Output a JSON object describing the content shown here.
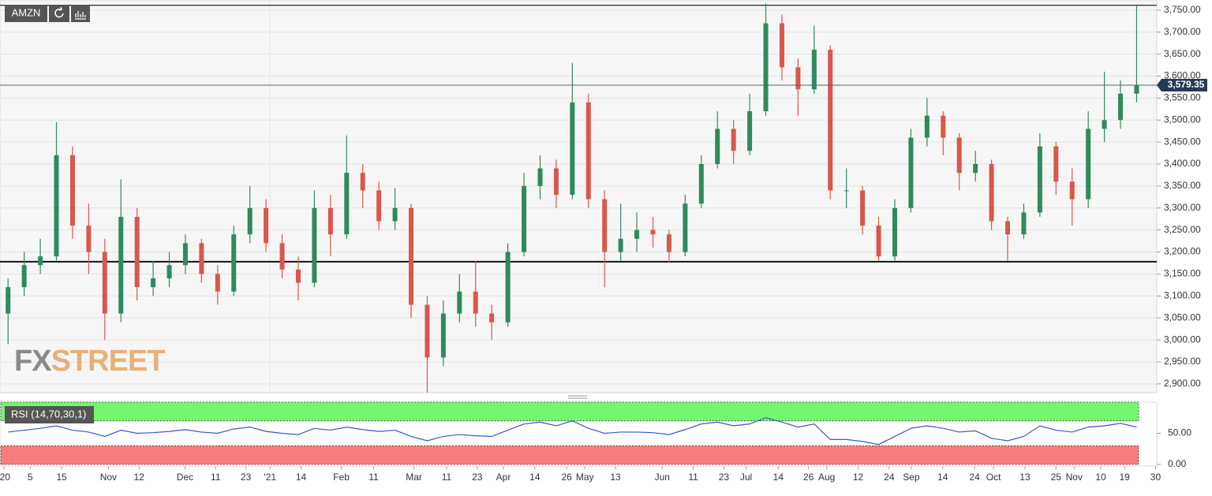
{
  "symbol": "AMZN",
  "logo": [
    "FX",
    "STREET"
  ],
  "chart_data": [
    {
      "type": "candlestick",
      "x": [
        2,
        6,
        10,
        14,
        18,
        22,
        26,
        30,
        34,
        38,
        42,
        46,
        50,
        54,
        58,
        62,
        66,
        70,
        74,
        78,
        82,
        86,
        90,
        94,
        98,
        102,
        106,
        110,
        114,
        118,
        122,
        126,
        130,
        134,
        138,
        142,
        146,
        150,
        154,
        158,
        162,
        166,
        170,
        174,
        178,
        182,
        186,
        190,
        194,
        198,
        202,
        206,
        210,
        214,
        218,
        222,
        226,
        230,
        234,
        238,
        242,
        246,
        250,
        254,
        258,
        262,
        266,
        270,
        274,
        278,
        282
      ],
      "open": [
        3060,
        3120,
        3170,
        3190,
        3420,
        3260,
        3200,
        3060,
        3280,
        3120,
        3140,
        3170,
        3220,
        3150,
        3110,
        3240,
        3300,
        3220,
        3160,
        3130,
        3300,
        3240,
        3380,
        3340,
        3270,
        3300,
        3080,
        2960,
        3060,
        3110,
        3060,
        3040,
        3200,
        3350,
        3390,
        3330,
        3540,
        3320,
        3200,
        3230,
        3250,
        3240,
        3200,
        3310,
        3400,
        3480,
        3430,
        3520,
        3720,
        3620,
        3570,
        3660,
        3340,
        3340,
        3260,
        3190,
        3300,
        3460,
        3510,
        3460,
        3380,
        3400,
        3270,
        3240,
        3290,
        3440,
        3360,
        3320,
        3480,
        3500,
        3560
      ],
      "high": [
        3140,
        3200,
        3230,
        3495,
        3440,
        3310,
        3230,
        3365,
        3300,
        3180,
        3200,
        3240,
        3230,
        3170,
        3260,
        3350,
        3320,
        3240,
        3190,
        3340,
        3330,
        3465,
        3400,
        3360,
        3345,
        3310,
        3100,
        3090,
        3150,
        3180,
        3080,
        3220,
        3380,
        3420,
        3410,
        3630,
        3560,
        3340,
        3310,
        3290,
        3280,
        3250,
        3330,
        3420,
        3520,
        3500,
        3560,
        3765,
        3740,
        3640,
        3715,
        3670,
        3390,
        3350,
        3280,
        3320,
        3480,
        3550,
        3520,
        3470,
        3430,
        3410,
        3280,
        3310,
        3470,
        3450,
        3390,
        3520,
        3610,
        3590,
        3760
      ],
      "low": [
        2990,
        3100,
        3150,
        3180,
        3230,
        3150,
        3000,
        3040,
        3090,
        3100,
        3120,
        3150,
        3130,
        3080,
        3100,
        3220,
        3200,
        3140,
        3090,
        3120,
        3190,
        3230,
        3300,
        3250,
        3250,
        3050,
        2880,
        2940,
        3040,
        3030,
        3000,
        3030,
        3190,
        3320,
        3300,
        3320,
        3300,
        3120,
        3180,
        3200,
        3210,
        3175,
        3190,
        3300,
        3390,
        3400,
        3420,
        3510,
        3590,
        3510,
        3560,
        3320,
        3300,
        3240,
        3180,
        3180,
        3290,
        3440,
        3420,
        3340,
        3360,
        3250,
        3180,
        3230,
        3280,
        3330,
        3260,
        3300,
        3450,
        3480,
        3540
      ],
      "close": [
        3120,
        3170,
        3190,
        3420,
        3260,
        3200,
        3060,
        3280,
        3120,
        3140,
        3170,
        3220,
        3150,
        3110,
        3240,
        3300,
        3220,
        3160,
        3130,
        3300,
        3240,
        3380,
        3340,
        3270,
        3300,
        3080,
        2960,
        3060,
        3110,
        3060,
        3040,
        3200,
        3350,
        3390,
        3330,
        3540,
        3320,
        3200,
        3230,
        3250,
        3240,
        3200,
        3310,
        3400,
        3480,
        3430,
        3520,
        3720,
        3620,
        3570,
        3660,
        3340,
        3340,
        3260,
        3190,
        3300,
        3460,
        3510,
        3460,
        3380,
        3400,
        3270,
        3240,
        3290,
        3440,
        3360,
        3320,
        3480,
        3500,
        3560,
        3579.35
      ],
      "up_color": "#2f8a5c",
      "down_color": "#d9574b",
      "xlim": [
        0,
        287
      ],
      "ylim": [
        2880,
        3773
      ],
      "yticks": [
        {
          "value": 2900,
          "label": "2,900.00"
        },
        {
          "value": 2950,
          "label": "2,950.00"
        },
        {
          "value": 3000,
          "label": "3,000.00"
        },
        {
          "value": 3050,
          "label": "3,050.00"
        },
        {
          "value": 3100,
          "label": "3,100.00"
        },
        {
          "value": 3150,
          "label": "3,150.00"
        },
        {
          "value": 3200,
          "label": "3,200.00"
        },
        {
          "value": 3250,
          "label": "3,250.00"
        },
        {
          "value": 3300,
          "label": "3,300.00"
        },
        {
          "value": 3350,
          "label": "3,350.00"
        },
        {
          "value": 3400,
          "label": "3,400.00"
        },
        {
          "value": 3450,
          "label": "3,450.00"
        },
        {
          "value": 3500,
          "label": "3,500.00"
        },
        {
          "value": 3550,
          "label": "3,550.00"
        },
        {
          "value": 3600,
          "label": "3,600.00"
        },
        {
          "value": 3650,
          "label": "3,650.00"
        },
        {
          "value": 3700,
          "label": "3,700.00"
        },
        {
          "value": 3750,
          "label": "3,750.00"
        }
      ],
      "xticks": [
        {
          "value": 1,
          "label": "'20"
        },
        {
          "value": 7.5,
          "label": "5"
        },
        {
          "value": 15.3,
          "label": "15"
        },
        {
          "value": 26.9,
          "label": "Nov"
        },
        {
          "value": 34.5,
          "label": "12"
        },
        {
          "value": 45.9,
          "label": "Dec"
        },
        {
          "value": 53.5,
          "label": "11"
        },
        {
          "value": 61,
          "label": "23"
        },
        {
          "value": 67,
          "label": "'21"
        },
        {
          "value": 74.7,
          "label": "14"
        },
        {
          "value": 84.7,
          "label": "Feb"
        },
        {
          "value": 92.7,
          "label": "11"
        },
        {
          "value": 102.7,
          "label": "Mar"
        },
        {
          "value": 110.8,
          "label": "11"
        },
        {
          "value": 118.4,
          "label": "23"
        },
        {
          "value": 124.9,
          "label": "Apr"
        },
        {
          "value": 132.7,
          "label": "14"
        },
        {
          "value": 140.6,
          "label": "26"
        },
        {
          "value": 145.1,
          "label": "May"
        },
        {
          "value": 152.7,
          "label": "13"
        },
        {
          "value": 164.3,
          "label": "Jun"
        },
        {
          "value": 172,
          "label": "11"
        },
        {
          "value": 179.6,
          "label": "23"
        },
        {
          "value": 185.1,
          "label": "Jul"
        },
        {
          "value": 193.1,
          "label": "14"
        },
        {
          "value": 200.6,
          "label": "26"
        },
        {
          "value": 205.1,
          "label": "Aug"
        },
        {
          "value": 212.9,
          "label": "12"
        },
        {
          "value": 220.6,
          "label": "24"
        },
        {
          "value": 226.1,
          "label": "Sep"
        },
        {
          "value": 233.9,
          "label": "14"
        },
        {
          "value": 241.8,
          "label": "24"
        },
        {
          "value": 246.5,
          "label": "Oct"
        },
        {
          "value": 254.3,
          "label": "13"
        },
        {
          "value": 262,
          "label": "25"
        },
        {
          "value": 266.5,
          "label": "Nov"
        },
        {
          "value": 273.1,
          "label": "10"
        },
        {
          "value": 279,
          "label": "19"
        },
        {
          "value": 286.7,
          "label": "30"
        }
      ],
      "hlines": [
        3761,
        3178
      ],
      "last_price": {
        "value": 3579.35,
        "label": "3,579.35"
      },
      "grid": true
    },
    {
      "type": "line",
      "title": "RSI (14,70,30,1)",
      "values": [
        52,
        55,
        58,
        62,
        55,
        52,
        45,
        55,
        50,
        51,
        53,
        56,
        52,
        50,
        57,
        60,
        53,
        50,
        48,
        58,
        55,
        60,
        56,
        53,
        55,
        45,
        38,
        45,
        48,
        46,
        45,
        55,
        65,
        68,
        62,
        70,
        58,
        50,
        52,
        52,
        51,
        48,
        56,
        65,
        68,
        62,
        65,
        75,
        68,
        60,
        65,
        40,
        40,
        37,
        32,
        45,
        58,
        62,
        58,
        52,
        54,
        42,
        38,
        45,
        62,
        55,
        52,
        60,
        62,
        66,
        60
      ],
      "color": "#3b55cf",
      "ylim": [
        0,
        100
      ],
      "yticks": [
        {
          "value": 0,
          "label": "0.00"
        },
        {
          "value": 50,
          "label": "50.00"
        }
      ],
      "bands": [
        {
          "from": 70,
          "to": 100,
          "color": "#76f56e"
        },
        {
          "from": 0,
          "to": 30,
          "color": "#f77d7b"
        }
      ]
    }
  ]
}
